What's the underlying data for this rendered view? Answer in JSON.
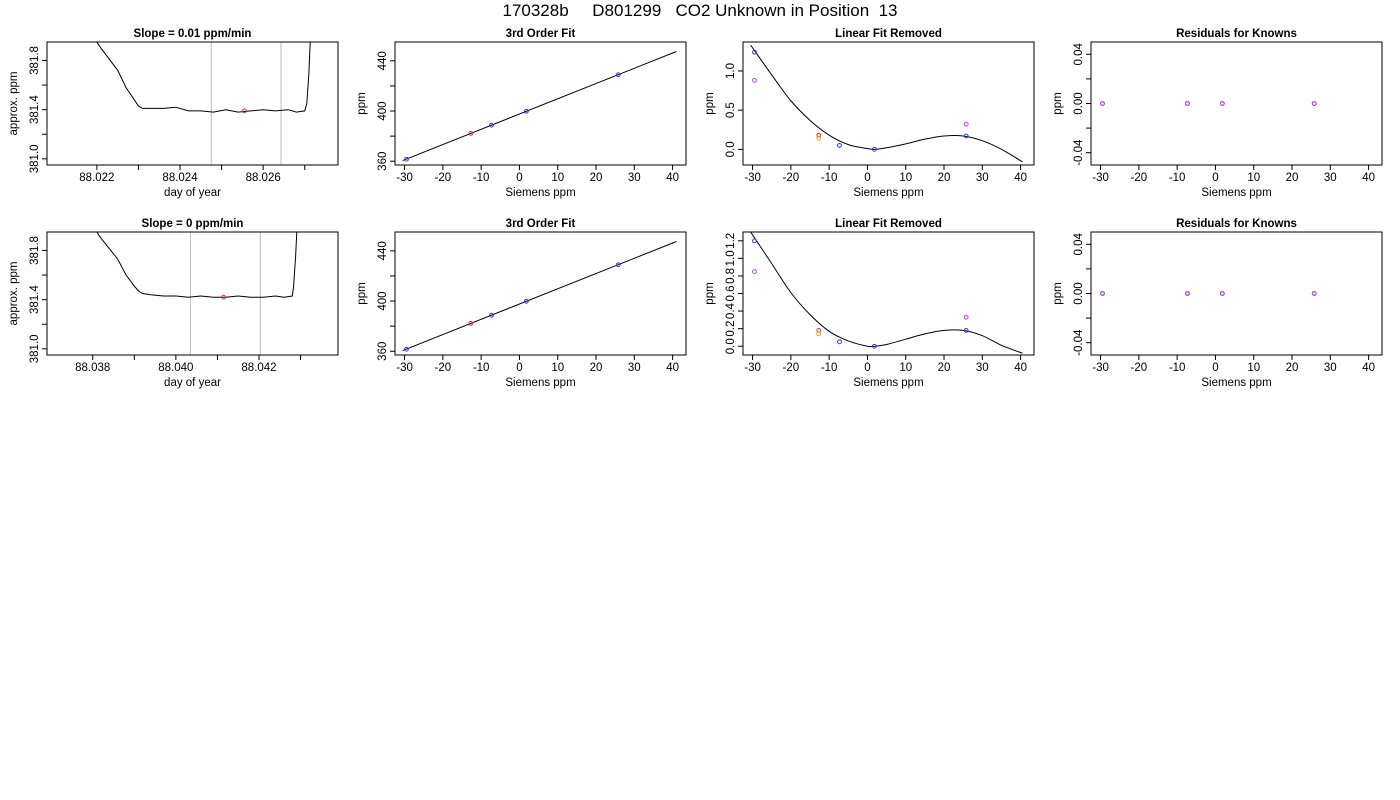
{
  "page": {
    "title": "170328b     D801299   CO2 Unknown in Position  13"
  },
  "chart_data": [
    {
      "id": "r1-timeseries",
      "type": "line",
      "title": "Slope =  0.01  ppm/min",
      "xlabel": "day of year",
      "ylabel": "approx. ppm",
      "xlim": [
        88.0208,
        88.0278
      ],
      "ylim": [
        380.95,
        381.95
      ],
      "xticks": [
        88.022,
        88.023,
        88.024,
        88.025,
        88.026,
        88.027
      ],
      "xtick_labels": [
        "88.022",
        "",
        "88.024",
        "",
        "88.026",
        ""
      ],
      "yticks": [
        381.0,
        381.2,
        381.4,
        381.6,
        381.8
      ],
      "ytick_labels": [
        "381.0",
        "",
        "381.4",
        "",
        "381.8"
      ],
      "vlines": [
        88.02475,
        88.02643
      ],
      "series": [
        {
          "color": "#000000",
          "x": [
            88.0217,
            88.0221,
            88.0225,
            88.0227,
            88.0229,
            88.023,
            88.0231,
            88.0233,
            88.0236,
            88.0239,
            88.0242,
            88.0245,
            88.0248,
            88.0251,
            88.0254,
            88.0257,
            88.026,
            88.0263,
            88.0266,
            88.0268,
            88.027,
            88.02705,
            88.0271,
            88.02715
          ],
          "y": [
            382.1,
            381.9,
            381.72,
            381.58,
            381.48,
            381.43,
            381.41,
            381.41,
            381.41,
            381.42,
            381.39,
            381.39,
            381.38,
            381.4,
            381.38,
            381.39,
            381.4,
            381.39,
            381.4,
            381.38,
            381.39,
            381.45,
            381.7,
            382.1
          ]
        }
      ],
      "points": [
        {
          "x": 88.02555,
          "y": 381.39,
          "color": "#e03030"
        }
      ]
    },
    {
      "id": "r1-fit",
      "type": "scatter",
      "title": "3rd Order Fit",
      "xlabel": "Siemens ppm",
      "ylabel": "ppm",
      "xlim": [
        -32.5,
        43.5
      ],
      "ylim": [
        357,
        455
      ],
      "xticks": [
        -30,
        -20,
        -10,
        0,
        10,
        20,
        30,
        40
      ],
      "xtick_labels": [
        "-30",
        "-20",
        "-10",
        "0",
        "10",
        "20",
        "30",
        "40"
      ],
      "yticks": [
        360,
        380,
        400,
        420,
        440
      ],
      "ytick_labels": [
        "360",
        "",
        "400",
        "",
        "440"
      ],
      "curve": {
        "type": "linear",
        "slope": 1.215,
        "intercept": 397.6,
        "x": [
          -30.5,
          41
        ]
      },
      "points": [
        {
          "x": -29.5,
          "y": 361.6,
          "color": "#1f3fe0"
        },
        {
          "x": -12.7,
          "y": 382.2,
          "color": "#e03030"
        },
        {
          "x": -7.3,
          "y": 388.7,
          "color": "#1f3fe0"
        },
        {
          "x": 1.8,
          "y": 399.8,
          "color": "#1f3fe0"
        },
        {
          "x": 25.8,
          "y": 428.9,
          "color": "#1f3fe0"
        }
      ]
    },
    {
      "id": "r1-linear-removed",
      "type": "scatter",
      "title": "Linear Fit Removed",
      "xlabel": "Siemens ppm",
      "ylabel": "ppm",
      "xlim": [
        -32.5,
        43.5
      ],
      "ylim": [
        -0.2,
        1.37
      ],
      "xticks": [
        -30,
        -20,
        -10,
        0,
        10,
        20,
        30,
        40
      ],
      "xtick_labels": [
        "-30",
        "-20",
        "-10",
        "0",
        "10",
        "20",
        "30",
        "40"
      ],
      "yticks": [
        0.0,
        0.5,
        1.0
      ],
      "ytick_labels": [
        "0.0",
        "0.5",
        "1.0"
      ],
      "curve": {
        "type": "spline",
        "x": [
          -30.5,
          -25,
          -20,
          -15,
          -10,
          -5,
          0,
          2,
          5,
          10,
          15,
          20,
          25,
          30,
          35,
          40.5
        ],
        "y": [
          1.33,
          0.95,
          0.62,
          0.37,
          0.18,
          0.06,
          0.01,
          0.0,
          0.02,
          0.07,
          0.13,
          0.17,
          0.17,
          0.11,
          0.0,
          -0.16
        ]
      },
      "points": [
        {
          "x": -29.5,
          "y": 1.24,
          "color": "#1f3fe0"
        },
        {
          "x": -29.5,
          "y": 0.88,
          "color": "#c040e0"
        },
        {
          "x": -12.7,
          "y": 0.18,
          "color": "#e03030"
        },
        {
          "x": -12.7,
          "y": 0.14,
          "color": "#f0a020"
        },
        {
          "x": -7.3,
          "y": 0.05,
          "color": "#1f3fe0"
        },
        {
          "x": 1.8,
          "y": 0.0,
          "color": "#1f3fe0"
        },
        {
          "x": 25.8,
          "y": 0.17,
          "color": "#1f3fe0"
        },
        {
          "x": 25.8,
          "y": 0.32,
          "color": "#c040e0"
        }
      ]
    },
    {
      "id": "r1-residuals",
      "type": "scatter",
      "title": "Residuals for Knowns",
      "xlabel": "Siemens ppm",
      "ylabel": "ppm",
      "xlim": [
        -32.5,
        43.5
      ],
      "ylim": [
        -0.05,
        0.05
      ],
      "xticks": [
        -30,
        -20,
        -10,
        0,
        10,
        20,
        30,
        40
      ],
      "xtick_labels": [
        "-30",
        "-20",
        "-10",
        "0",
        "10",
        "20",
        "30",
        "40"
      ],
      "yticks": [
        -0.04,
        -0.02,
        0.0,
        0.02,
        0.04
      ],
      "ytick_labels": [
        "-0.04",
        "",
        "0.00",
        "",
        "0.04"
      ],
      "points": [
        {
          "x": -29.5,
          "y": 0.0,
          "color": "#1f3fe0"
        },
        {
          "x": -7.3,
          "y": 0.0,
          "color": "#1f3fe0"
        },
        {
          "x": 1.8,
          "y": 0.0,
          "color": "#1f3fe0"
        },
        {
          "x": 25.8,
          "y": 0.0,
          "color": "#1f3fe0"
        },
        {
          "x": -29.5,
          "y": 0.0,
          "color": "#c040e0"
        },
        {
          "x": -7.3,
          "y": 0.0,
          "color": "#c040e0"
        },
        {
          "x": 1.8,
          "y": 0.0,
          "color": "#c040e0"
        },
        {
          "x": 25.8,
          "y": 0.0,
          "color": "#c040e0"
        }
      ]
    },
    {
      "id": "r2-timeseries",
      "type": "line",
      "title": "Slope =  0  ppm/min",
      "xlabel": "day of year",
      "ylabel": "approx. ppm",
      "xlim": [
        88.0369,
        88.0439
      ],
      "ylim": [
        380.95,
        381.95
      ],
      "xticks": [
        88.038,
        88.039,
        88.04,
        88.041,
        88.042,
        88.043
      ],
      "xtick_labels": [
        "88.038",
        "",
        "88.040",
        "",
        "88.042",
        ""
      ],
      "yticks": [
        381.0,
        381.2,
        381.4,
        381.6,
        381.8
      ],
      "ytick_labels": [
        "381.0",
        "",
        "381.4",
        "",
        "381.8"
      ],
      "vlines": [
        88.04035,
        88.04203
      ],
      "series": [
        {
          "color": "#000000",
          "x": [
            88.0378,
            88.0382,
            88.0386,
            88.0388,
            88.039,
            88.0391,
            88.0392,
            88.0394,
            88.0397,
            88.04,
            88.0403,
            88.0406,
            88.0409,
            88.0412,
            88.0415,
            88.0418,
            88.0421,
            88.0424,
            88.0426,
            88.0428,
            88.04283,
            88.04288,
            88.04293
          ],
          "y": [
            382.1,
            381.9,
            381.73,
            381.6,
            381.51,
            381.47,
            381.45,
            381.44,
            381.43,
            381.43,
            381.42,
            381.43,
            381.42,
            381.42,
            381.43,
            381.42,
            381.42,
            381.43,
            381.42,
            381.43,
            381.5,
            381.75,
            382.1
          ]
        }
      ],
      "points": [
        {
          "x": 88.04115,
          "y": 381.42,
          "color": "#e03030"
        }
      ]
    },
    {
      "id": "r2-fit",
      "type": "scatter",
      "title": "3rd Order Fit",
      "xlabel": "Siemens ppm",
      "ylabel": "ppm",
      "xlim": [
        -32.5,
        43.5
      ],
      "ylim": [
        357,
        455
      ],
      "xticks": [
        -30,
        -20,
        -10,
        0,
        10,
        20,
        30,
        40
      ],
      "xtick_labels": [
        "-30",
        "-20",
        "-10",
        "0",
        "10",
        "20",
        "30",
        "40"
      ],
      "yticks": [
        360,
        380,
        400,
        420,
        440
      ],
      "ytick_labels": [
        "360",
        "",
        "400",
        "",
        "440"
      ],
      "curve": {
        "type": "linear",
        "slope": 1.215,
        "intercept": 397.6,
        "x": [
          -30.5,
          41
        ]
      },
      "points": [
        {
          "x": -29.5,
          "y": 361.6,
          "color": "#1f3fe0"
        },
        {
          "x": -12.7,
          "y": 382.2,
          "color": "#e03030"
        },
        {
          "x": -7.3,
          "y": 388.7,
          "color": "#1f3fe0"
        },
        {
          "x": 1.8,
          "y": 399.8,
          "color": "#1f3fe0"
        },
        {
          "x": 25.8,
          "y": 428.9,
          "color": "#1f3fe0"
        }
      ]
    },
    {
      "id": "r2-linear-removed",
      "type": "scatter",
      "title": "Linear Fit Removed",
      "xlabel": "Siemens ppm",
      "ylabel": "ppm",
      "xlim": [
        -32.5,
        43.5
      ],
      "ylim": [
        -0.1,
        1.3
      ],
      "xticks": [
        -30,
        -20,
        -10,
        0,
        10,
        20,
        30,
        40
      ],
      "xtick_labels": [
        "-30",
        "-20",
        "-10",
        "0",
        "10",
        "20",
        "30",
        "40"
      ],
      "yticks": [
        0.0,
        0.2,
        0.4,
        0.6,
        0.8,
        1.0,
        1.2
      ],
      "ytick_labels": [
        "0.0",
        "0.2",
        "0.4",
        "0.6",
        "0.8",
        "1.0",
        "1.2"
      ],
      "curve": {
        "type": "spline",
        "x": [
          -30.5,
          -25,
          -20,
          -15,
          -10,
          -5,
          0,
          2,
          5,
          10,
          15,
          20,
          25,
          30,
          35,
          40.5
        ],
        "y": [
          1.3,
          0.94,
          0.61,
          0.36,
          0.17,
          0.06,
          0.0,
          0.0,
          0.02,
          0.08,
          0.14,
          0.18,
          0.18,
          0.12,
          0.01,
          -0.08
        ]
      },
      "points": [
        {
          "x": -29.5,
          "y": 1.2,
          "color": "#1f3fe0"
        },
        {
          "x": -29.5,
          "y": 0.85,
          "color": "#c040e0"
        },
        {
          "x": -12.7,
          "y": 0.18,
          "color": "#e03030"
        },
        {
          "x": -12.7,
          "y": 0.14,
          "color": "#f0a020"
        },
        {
          "x": -7.3,
          "y": 0.05,
          "color": "#1f3fe0"
        },
        {
          "x": 1.8,
          "y": 0.0,
          "color": "#1f3fe0"
        },
        {
          "x": 25.8,
          "y": 0.18,
          "color": "#1f3fe0"
        },
        {
          "x": 25.8,
          "y": 0.33,
          "color": "#c040e0"
        }
      ]
    },
    {
      "id": "r2-residuals",
      "type": "scatter",
      "title": "Residuals for Knowns",
      "xlabel": "Siemens ppm",
      "ylabel": "ppm",
      "xlim": [
        -32.5,
        43.5
      ],
      "ylim": [
        -0.05,
        0.05
      ],
      "xticks": [
        -30,
        -20,
        -10,
        0,
        10,
        20,
        30,
        40
      ],
      "xtick_labels": [
        "-30",
        "-20",
        "-10",
        "0",
        "10",
        "20",
        "30",
        "40"
      ],
      "yticks": [
        -0.04,
        -0.02,
        0.0,
        0.02,
        0.04
      ],
      "ytick_labels": [
        "-0.04",
        "",
        "0.00",
        "",
        "0.04"
      ],
      "points": [
        {
          "x": -29.5,
          "y": 0.0,
          "color": "#1f3fe0"
        },
        {
          "x": -7.3,
          "y": 0.0,
          "color": "#1f3fe0"
        },
        {
          "x": 1.8,
          "y": 0.0,
          "color": "#1f3fe0"
        },
        {
          "x": 25.8,
          "y": 0.0,
          "color": "#1f3fe0"
        },
        {
          "x": -29.5,
          "y": 0.0,
          "color": "#c040e0"
        },
        {
          "x": -7.3,
          "y": 0.0,
          "color": "#c040e0"
        },
        {
          "x": 1.8,
          "y": 0.0,
          "color": "#c040e0"
        },
        {
          "x": 25.8,
          "y": 0.0,
          "color": "#c040e0"
        }
      ]
    }
  ]
}
